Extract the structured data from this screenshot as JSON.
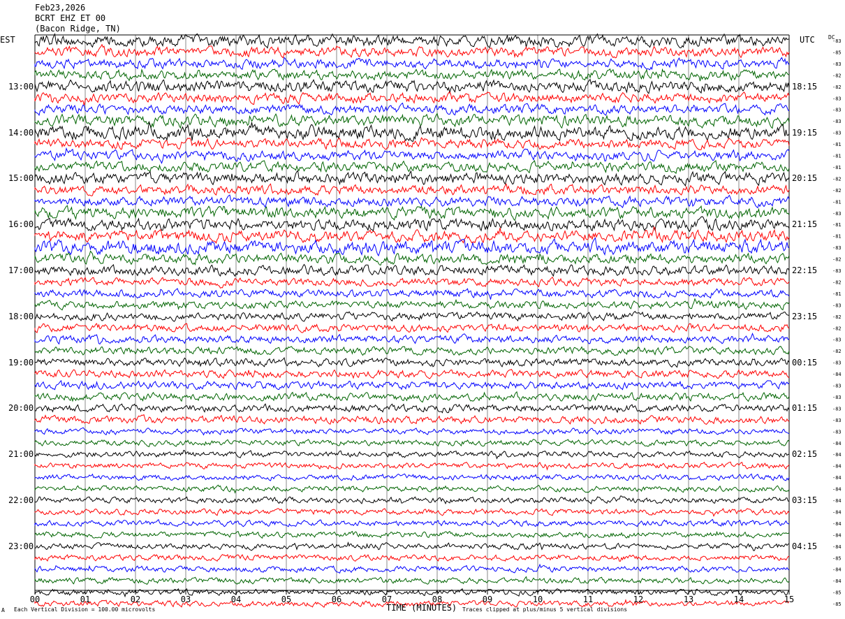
{
  "header": {
    "date": "Feb23,2026",
    "station": "BCRT EHZ ET 00",
    "location": "(Bacon Ridge, TN)"
  },
  "left_axis_title": "EST",
  "right_axis_title": "UTC",
  "dc_title": "DC",
  "footer": {
    "scale_note": "Each Vertical Division =  100.00 microvolts",
    "clip_note": "Traces clipped at plus/minus 5 vertical divisions",
    "corner_mark": "A"
  },
  "chart_data": {
    "type": "line",
    "subtype": "helicorder",
    "xlabel": "TIME (MINUTES)",
    "x_ticks": [
      "00",
      "01",
      "02",
      "03",
      "04",
      "05",
      "06",
      "07",
      "08",
      "09",
      "10",
      "11",
      "12",
      "13",
      "14",
      "15"
    ],
    "xlim": [
      0,
      15
    ],
    "minutes_per_line": 15,
    "trace_colors": [
      "#000000",
      "#ff0000",
      "#0000ff",
      "#006400"
    ],
    "left_hour_labels": [
      "13:00",
      "14:00",
      "15:00",
      "16:00",
      "17:00",
      "18:00",
      "19:00",
      "20:00",
      "21:00",
      "22:00",
      "23:00"
    ],
    "right_hour_labels": [
      "18:15",
      "19:15",
      "20:15",
      "21:15",
      "22:15",
      "23:15",
      "00:15",
      "01:15",
      "02:15",
      "03:15",
      "04:15"
    ],
    "dc_offsets": [
      "-83",
      "-85",
      "-83",
      "-82",
      "-82",
      "-83",
      "-83",
      "-83",
      "-83",
      "-81",
      "-81",
      "-81",
      "-82",
      "-82",
      "-81",
      "-83",
      "-81",
      "-81",
      "-83",
      "-82",
      "-83",
      "-82",
      "-81",
      "-83",
      "-82",
      "-82",
      "-83",
      "-82",
      "-83",
      "-84",
      "-83",
      "-83",
      "-83",
      "-83",
      "-83",
      "-84",
      "-84",
      "-84",
      "-84",
      "-84",
      "-84",
      "-84",
      "-84",
      "-84",
      "-84",
      "-85",
      "-84",
      "-84",
      "-85",
      "-85"
    ],
    "amplitude_envelope": [
      6,
      5,
      5,
      5,
      6,
      5,
      5,
      6,
      7,
      5,
      5,
      5,
      6,
      5,
      5,
      6,
      6,
      6,
      7,
      5,
      5,
      4,
      4,
      4,
      4,
      4,
      4,
      4,
      4,
      4,
      4,
      4,
      4,
      4,
      3,
      3,
      3,
      3,
      3,
      3,
      3,
      3,
      3,
      3,
      3,
      3,
      3,
      3,
      3,
      3
    ]
  }
}
